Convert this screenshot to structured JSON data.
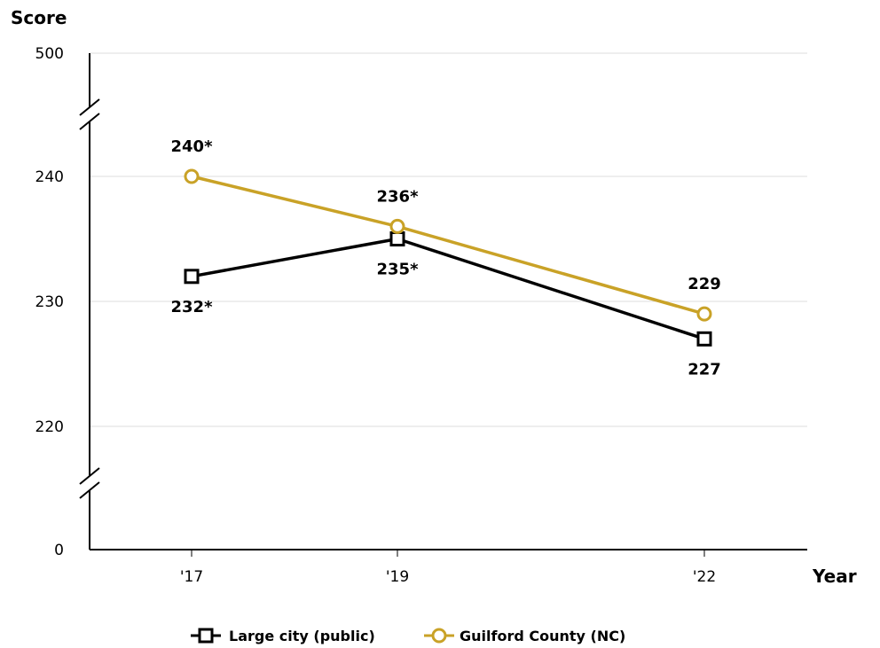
{
  "chart_data": {
    "type": "line",
    "ylabel": "Score",
    "xlabel": "Year",
    "categories": [
      "'17",
      "'19",
      "'22"
    ],
    "y_ticks": [
      0,
      220,
      230,
      240,
      500
    ],
    "y_axis_breaks": true,
    "ylim_visible": [
      215,
      245
    ],
    "grid": true,
    "legend_position": "bottom-center",
    "series": [
      {
        "name": "Large city (public)",
        "values": [
          232,
          235,
          227
        ],
        "labels": [
          "232*",
          "235*",
          "227"
        ],
        "label_side": [
          "below",
          "below",
          "below"
        ],
        "marker": "square",
        "color": "#000000"
      },
      {
        "name": "Guilford County (NC)",
        "values": [
          240,
          236,
          229
        ],
        "labels": [
          "240*",
          "236*",
          "229"
        ],
        "label_side": [
          "above",
          "above",
          "above"
        ],
        "marker": "circle",
        "color": "#C9A227"
      }
    ]
  }
}
